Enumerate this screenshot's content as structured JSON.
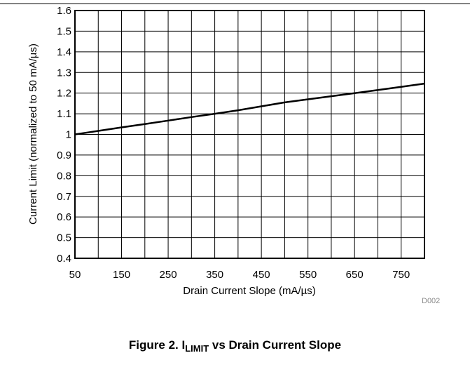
{
  "figure": {
    "caption_prefix": "Figure 2. I",
    "caption_sub": "LIMIT",
    "caption_suffix": " vs Drain Current Slope",
    "code": "D002"
  },
  "chart_data": {
    "type": "line",
    "title": "",
    "xlabel": "Drain Current Slope (mA/µs)",
    "ylabel": "Current Limit (normalized to 50 mA/µs)",
    "xlim": [
      50,
      800
    ],
    "ylim": [
      0.4,
      1.6
    ],
    "x_tick_labels": [
      "50",
      "150",
      "250",
      "350",
      "450",
      "550",
      "650",
      "750"
    ],
    "x_tick_values": [
      50,
      150,
      250,
      350,
      450,
      550,
      650,
      750
    ],
    "y_tick_labels": [
      "0.4",
      "0.5",
      "0.6",
      "0.7",
      "0.8",
      "0.9",
      "1",
      "1.1",
      "1.2",
      "1.3",
      "1.4",
      "1.5",
      "1.6"
    ],
    "y_tick_values": [
      0.4,
      0.5,
      0.6,
      0.7,
      0.8,
      0.9,
      1.0,
      1.1,
      1.2,
      1.3,
      1.4,
      1.5,
      1.6
    ],
    "x_grid_step": 50,
    "grid": true,
    "series": [
      {
        "x": [
          50,
          100,
          150,
          200,
          250,
          300,
          350,
          400,
          450,
          500,
          550,
          600,
          650,
          700,
          750,
          800
        ],
        "y": [
          1.0,
          1.017,
          1.034,
          1.05,
          1.067,
          1.084,
          1.1,
          1.117,
          1.136,
          1.155,
          1.17,
          1.185,
          1.2,
          1.215,
          1.23,
          1.246
        ],
        "color": "#000000"
      }
    ]
  }
}
